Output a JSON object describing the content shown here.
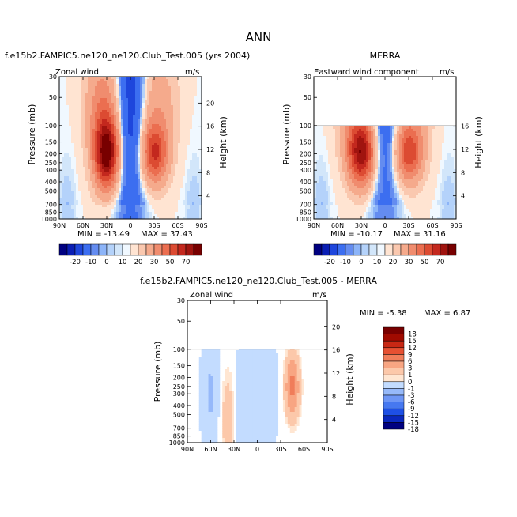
{
  "page_title": "ANN",
  "colors": {
    "neg_scale": [
      "#000080",
      "#0a1eb4",
      "#1e46dc",
      "#3c6ef0",
      "#648cf0",
      "#8cb4f8",
      "#b4d2fa",
      "#d2e6fa",
      "#f0f8ff"
    ],
    "pos_scale": [
      "#ffe4d2",
      "#fac8af",
      "#f5aa8c",
      "#f08c6e",
      "#eb6e50",
      "#dc4b32",
      "#c3281e",
      "#a0140f",
      "#780000"
    ],
    "diff_neg": [
      "#000080",
      "#0a28be",
      "#1e50e6",
      "#4678f0",
      "#6e96f5",
      "#96b9fa",
      "#c3dcff"
    ],
    "diff_pos": [
      "#ffe6d2",
      "#fcc8aa",
      "#f8a582",
      "#f07d5a",
      "#e65032",
      "#c82814",
      "#a00a00",
      "#780000"
    ],
    "zero": "#ffffff"
  },
  "chart_data": [
    {
      "id": "model",
      "type": "contour",
      "title": "f.e15b2.FAMPIC5.ne120_ne120.Club_Test.005 (yrs 2004)",
      "inner_left": "Zonal wind",
      "inner_right": "m/s",
      "ylabel": "Pressure (mb)",
      "ylabel_right": "Height (km)",
      "x_ticks": [
        "90N",
        "60N",
        "30N",
        "0",
        "30S",
        "60S",
        "90S"
      ],
      "x_range": [
        90,
        -90
      ],
      "y_ticks": [
        "30",
        "50",
        "100",
        "150",
        "200",
        "250",
        "300",
        "400",
        "500",
        "700",
        "850",
        "1000"
      ],
      "y_range_mb": [
        30,
        1000
      ],
      "height_ticks": [
        "4",
        "8",
        "12",
        "16",
        "20"
      ],
      "data_top_mb": 30,
      "min_text": "MIN = -13.49",
      "max_text": "MAX =  37.43",
      "jets": [
        {
          "lat": 30,
          "p": 200,
          "peak": 37.4,
          "wlat": 11,
          "wp": 2.2
        },
        {
          "lat": -30,
          "p": 200,
          "peak": 24,
          "wlat": 12,
          "wp": 1.9
        }
      ],
      "easterly": {
        "lat": 0,
        "peak": -13.5
      }
    },
    {
      "id": "obs",
      "type": "contour",
      "title": "MERRA",
      "inner_left": "Eastward wind component",
      "inner_right": "m/s",
      "ylabel": "Pressure (mb)",
      "ylabel_right": "Height (km)",
      "x_ticks": [
        "90N",
        "60N",
        "30N",
        "0",
        "30S",
        "60S",
        "90S"
      ],
      "x_range": [
        90,
        -90
      ],
      "y_ticks": [
        "30",
        "50",
        "100",
        "150",
        "200",
        "250",
        "300",
        "400",
        "500",
        "700",
        "850",
        "1000"
      ],
      "y_range_mb": [
        30,
        1000
      ],
      "height_ticks": [
        "4",
        "8",
        "12",
        "16"
      ],
      "data_top_mb": 100,
      "min_text": "MIN = -10.17",
      "max_text": "MAX =  31.16",
      "jets": [
        {
          "lat": 30,
          "p": 200,
          "peak": 31.2,
          "wlat": 12,
          "wp": 2.0
        },
        {
          "lat": -30,
          "p": 200,
          "peak": 22,
          "wlat": 12,
          "wp": 1.8
        }
      ],
      "easterly": {
        "lat": 0,
        "peak": -10.2
      }
    },
    {
      "id": "diff",
      "type": "contour",
      "title": "f.e15b2.FAMPIC5.ne120_ne120.Club_Test.005 - MERRA",
      "inner_left": "Zonal wind",
      "inner_right": "m/s",
      "ylabel": "Pressure (mb)",
      "ylabel_right": "Height (km)",
      "x_ticks": [
        "90N",
        "60N",
        "30N",
        "0",
        "30S",
        "60S",
        "90S"
      ],
      "x_range": [
        90,
        -90
      ],
      "y_ticks": [
        "30",
        "50",
        "100",
        "150",
        "200",
        "250",
        "300",
        "400",
        "500",
        "700",
        "850",
        "1000"
      ],
      "y_range_mb": [
        30,
        1000
      ],
      "height_ticks": [
        "4",
        "8",
        "12",
        "16",
        "20"
      ],
      "data_top_mb": 100,
      "min_text": "MIN =  -5.38",
      "max_text": "MAX =   6.87"
    }
  ],
  "colorbar_main": {
    "levels": [
      "-20",
      "-10",
      "0",
      "10",
      "20",
      "30",
      "50",
      "70"
    ],
    "boxes": 20
  },
  "colorbar_diff": {
    "levels": [
      "18",
      "15",
      "12",
      "9",
      "6",
      "3",
      "1",
      "0",
      "-1",
      "-3",
      "-6",
      "-9",
      "-12",
      "-15",
      "-18"
    ]
  }
}
